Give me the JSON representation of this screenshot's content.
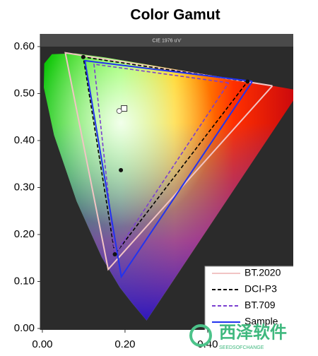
{
  "chart_data": {
    "type": "line",
    "title": "Color Gamut",
    "subtitle": "CIE 1976 u'v'",
    "xlim": [
      -0.005,
      0.607
    ],
    "ylim": [
      -0.003,
      0.627
    ],
    "xticks": [
      {
        "value": 0,
        "label": "0.00"
      },
      {
        "value": 0.2,
        "label": "0.20"
      },
      {
        "value": 0.4,
        "label": "0.40"
      }
    ],
    "yticks": [
      {
        "value": 0,
        "label": "0.00"
      },
      {
        "value": 0.1,
        "label": "0.10"
      },
      {
        "value": 0.2,
        "label": "0.20"
      },
      {
        "value": 0.3,
        "label": "0.30"
      },
      {
        "value": 0.4,
        "label": "0.40"
      },
      {
        "value": 0.5,
        "label": "0.50"
      },
      {
        "value": 0.6,
        "label": "0.60"
      }
    ],
    "legend": "lower right",
    "spectral_locus": {
      "x": [
        0.2522,
        0.2161,
        0.1877,
        0.144,
        0.0828,
        0.0282,
        0.0035,
        0.0046,
        0.0231,
        0.0792,
        0.1531,
        0.2624,
        0.4035,
        0.5202,
        0.583,
        0.6233
      ],
      "values": [
        0.0169,
        0.0549,
        0.0871,
        0.151,
        0.2709,
        0.4117,
        0.513,
        0.5639,
        0.5837,
        0.5856,
        0.5766,
        0.5604,
        0.5393,
        0.5219,
        0.5125,
        0.5064
      ]
    },
    "series": [
      {
        "name": "BT.2020",
        "color": "#f2c4c4",
        "style": "solid",
        "x": [
          0.5566,
          0.0556,
          0.1593,
          0.5566
        ],
        "values": [
          0.5165,
          0.5868,
          0.1258,
          0.5165
        ]
      },
      {
        "name": "DCI-P3",
        "color": "#000000",
        "style": "dashed",
        "x": [
          0.4964,
          0.099,
          0.1754,
          0.4964
        ],
        "values": [
          0.5256,
          0.5778,
          0.1579,
          0.5256
        ]
      },
      {
        "name": "BT.709",
        "color": "#7a3fd0",
        "style": "dashed",
        "x": [
          0.4507,
          0.125,
          0.1754,
          0.4507
        ],
        "values": [
          0.5229,
          0.5625,
          0.1579,
          0.5229
        ]
      },
      {
        "name": "Sample",
        "color": "#2233ee",
        "style": "solid",
        "x": [
          0.508,
          0.103,
          0.191,
          0.508
        ],
        "values": [
          0.526,
          0.57,
          0.11,
          0.526
        ]
      }
    ],
    "markers": {
      "x": [
        0.1978,
        0.186,
        0.19,
        0.099,
        0.4964,
        0.1754
      ],
      "values": [
        0.4683,
        0.463,
        0.337,
        0.5778,
        0.5256,
        0.1579
      ],
      "shapes": [
        "square",
        "circle",
        "dot",
        "dot",
        "dot",
        "dot"
      ]
    }
  },
  "watermark": {
    "text": "西泽软件",
    "subtext": "SEEDSOFCHANGE"
  }
}
